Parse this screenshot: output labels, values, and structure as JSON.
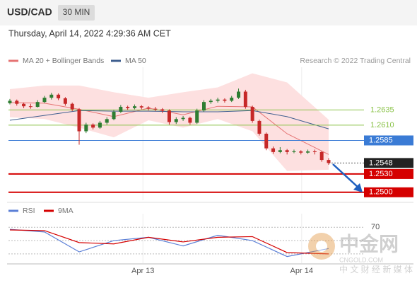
{
  "chart_data": {
    "type": "candlestick",
    "symbol": "USD/CAD",
    "interval": "30 MIN",
    "timestamp": "Thursday, April 14, 2022 4:29:36 AM CET",
    "credit": "Research © 2022 Trading Central",
    "up_color": "#2e7d32",
    "down_color": "#c62828",
    "xlim": [
      -0.2,
      51.1
    ],
    "ylim": [
      1.2487,
      1.2705
    ],
    "xticks": [
      {
        "value": 19.2,
        "label": "Apr 13"
      },
      {
        "value": 42.1,
        "label": "Apr 14"
      }
    ],
    "candles": [
      [
        1.2646,
        1.2653,
        1.2644,
        1.265
      ],
      [
        1.265,
        1.2652,
        1.2642,
        1.2645
      ],
      [
        1.2645,
        1.2647,
        1.2638,
        1.2641
      ],
      [
        1.2641,
        1.2645,
        1.2637,
        1.264
      ],
      [
        1.264,
        1.2651,
        1.2639,
        1.2648
      ],
      [
        1.2648,
        1.2658,
        1.2646,
        1.2655
      ],
      [
        1.2655,
        1.2663,
        1.2652,
        1.266
      ],
      [
        1.266,
        1.2662,
        1.2651,
        1.2654
      ],
      [
        1.2654,
        1.2656,
        1.2642,
        1.2645
      ],
      [
        1.2645,
        1.2647,
        1.2633,
        1.2636
      ],
      [
        1.2636,
        1.2638,
        1.2578,
        1.26
      ],
      [
        1.26,
        1.2614,
        1.2597,
        1.2611
      ],
      [
        1.2611,
        1.2613,
        1.2603,
        1.2606
      ],
      [
        1.2606,
        1.2617,
        1.2604,
        1.2614
      ],
      [
        1.2614,
        1.2623,
        1.2611,
        1.262
      ],
      [
        1.262,
        1.2635,
        1.2618,
        1.2632
      ],
      [
        1.2632,
        1.2643,
        1.263,
        1.264
      ],
      [
        1.264,
        1.2642,
        1.2635,
        1.2638
      ],
      [
        1.2638,
        1.2644,
        1.2636,
        1.2641
      ],
      [
        1.2641,
        1.2643,
        1.2636,
        1.2639
      ],
      [
        1.2639,
        1.2641,
        1.2634,
        1.2637
      ],
      [
        1.2637,
        1.264,
        1.2633,
        1.2636
      ],
      [
        1.2636,
        1.2638,
        1.263,
        1.2634
      ],
      [
        1.2634,
        1.2636,
        1.2611,
        1.2615
      ],
      [
        1.2615,
        1.2623,
        1.2612,
        1.262
      ],
      [
        1.262,
        1.2625,
        1.2617,
        1.2622
      ],
      [
        1.2622,
        1.2624,
        1.2611,
        1.2614
      ],
      [
        1.2614,
        1.2637,
        1.2612,
        1.2634
      ],
      [
        1.2634,
        1.2651,
        1.2632,
        1.2648
      ],
      [
        1.2648,
        1.2653,
        1.2645,
        1.265
      ],
      [
        1.265,
        1.2655,
        1.2647,
        1.2652
      ],
      [
        1.2652,
        1.2654,
        1.2647,
        1.265
      ],
      [
        1.265,
        1.2658,
        1.2648,
        1.2655
      ],
      [
        1.2655,
        1.267,
        1.2653,
        1.2665
      ],
      [
        1.2665,
        1.2668,
        1.2637,
        1.264
      ],
      [
        1.264,
        1.2642,
        1.2614,
        1.2617
      ],
      [
        1.2617,
        1.2619,
        1.2593,
        1.2596
      ],
      [
        1.2596,
        1.2598,
        1.2569,
        1.2572
      ],
      [
        1.2572,
        1.2575,
        1.2563,
        1.2566
      ],
      [
        1.2566,
        1.2574,
        1.2564,
        1.2569
      ],
      [
        1.2569,
        1.2571,
        1.2562,
        1.2566
      ],
      [
        1.2566,
        1.257,
        1.2564,
        1.2567
      ],
      [
        1.2567,
        1.2569,
        1.2562,
        1.2565
      ],
      [
        1.2565,
        1.257,
        1.2563,
        1.2567
      ],
      [
        1.2567,
        1.257,
        1.2562,
        1.2566
      ],
      [
        1.2566,
        1.2568,
        1.255,
        1.2553
      ],
      [
        1.2553,
        1.2556,
        1.2545,
        1.2548
      ]
    ],
    "indicator_x": [
      0,
      5,
      10,
      15,
      20,
      25,
      30,
      35,
      40,
      46
    ],
    "indicators": [
      {
        "name": "MA 20 + Bollinger Bands",
        "color": "#e57373",
        "band_color": "#fde0e0",
        "values": [
          1.2647,
          1.2646,
          1.2636,
          1.2624,
          1.2638,
          1.2627,
          1.2641,
          1.264,
          1.2596,
          1.2562
        ],
        "upper": [
          1.2669,
          1.2675,
          1.2675,
          1.2664,
          1.2655,
          1.2664,
          1.2672,
          1.2695,
          1.268,
          1.2619
        ],
        "lower": [
          1.2623,
          1.262,
          1.2606,
          1.259,
          1.2618,
          1.2606,
          1.262,
          1.26,
          1.2535,
          1.2537
        ]
      },
      {
        "name": "MA 50",
        "color": "#3f5f8f",
        "values": [
          1.2618,
          1.2626,
          1.2634,
          1.2633,
          1.2633,
          1.2632,
          1.2632,
          1.2634,
          1.2624,
          1.2604
        ]
      }
    ],
    "levels": [
      {
        "value": 1.2635,
        "label": "1.2635",
        "color": "#8bc34a",
        "style": "text"
      },
      {
        "value": 1.261,
        "label": "1.2610",
        "color": "#8bc34a",
        "style": "text"
      },
      {
        "value": 1.2585,
        "label": "1.2585",
        "color": "#3a7bd5",
        "style": "box"
      },
      {
        "value": 1.2548,
        "label": "1.2548",
        "color": "#222222",
        "style": "current"
      },
      {
        "value": 1.253,
        "label": "1.2530",
        "color": "#d50000",
        "style": "box"
      },
      {
        "value": 1.25,
        "label": "1.2500",
        "color": "#d50000",
        "style": "box"
      }
    ],
    "rsi": {
      "ylim": [
        16,
        82
      ],
      "yticks": [
        70
      ],
      "levels": [
        70,
        50,
        30
      ],
      "series": [
        {
          "name": "RSI",
          "color": "#5b7fd6",
          "values": [
            67,
            63,
            33,
            50,
            55,
            42,
            58,
            50,
            26,
            38
          ]
        },
        {
          "name": "9MA",
          "color": "#d50000",
          "values": [
            66,
            65,
            47,
            45,
            55,
            48,
            55,
            56,
            32,
            30
          ]
        }
      ]
    },
    "watermark": [
      "中金网",
      "CNGOLD.COM",
      "中 文 财 经 新 媒 体"
    ]
  }
}
